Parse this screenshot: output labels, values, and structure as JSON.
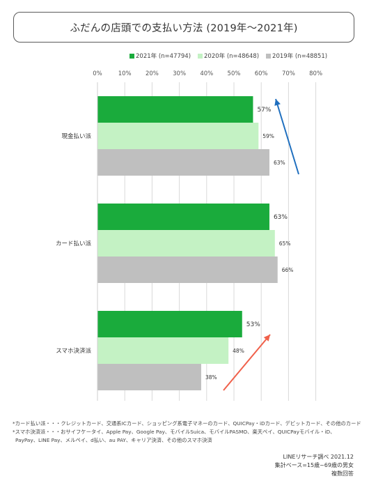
{
  "title": "ふだんの店頭での支払い方法 (2019年～2021年)",
  "legend": [
    {
      "label": "2021年 (n=47794)",
      "color": "#1aab3c"
    },
    {
      "label": "2020年 (n=48648)",
      "color": "#c4f2c4"
    },
    {
      "label": "2019年 (n=48851)",
      "color": "#bfbfbf"
    }
  ],
  "chart_data": {
    "type": "bar",
    "orientation": "horizontal",
    "categories": [
      "現金払い派",
      "カード払い派",
      "スマホ決済派"
    ],
    "series": [
      {
        "name": "2021年 (n=47794)",
        "values": [
          57,
          63,
          53
        ],
        "labels": [
          "57%",
          "63%",
          "53%"
        ],
        "color": "#1aab3c"
      },
      {
        "name": "2020年 (n=48648)",
        "values": [
          59,
          65,
          48
        ],
        "labels": [
          "59%",
          "65%",
          "48%"
        ],
        "color": "#c4f2c4"
      },
      {
        "name": "2019年 (n=48851)",
        "values": [
          63,
          66,
          38
        ],
        "labels": [
          "63%",
          "66%",
          "38%"
        ],
        "color": "#bfbfbf"
      }
    ],
    "xlim": [
      0,
      80
    ],
    "ticks": [
      "0%",
      "10%",
      "20%",
      "30%",
      "40%",
      "50%",
      "60%",
      "70%",
      "80%"
    ],
    "tick_values": [
      0,
      10,
      20,
      30,
      40,
      50,
      60,
      70,
      80
    ],
    "grid": true,
    "legend_position": "top-right",
    "annotations": [
      {
        "type": "arrow",
        "direction": "up",
        "color": "#1f6fbf",
        "category": "現金払い派"
      },
      {
        "type": "arrow",
        "direction": "up",
        "color": "#f0604a",
        "category": "スマホ決済派"
      }
    ]
  },
  "footnotes": [
    "*カード払い派・・・クレジットカード、交通系ICカード、ショッピング系電子マネーのカード、QUICPay・iDカード、デビットカード、その他のカード",
    "*スマホ決済派・・・おサイフケータイ、Apple Pay、Google Pay、モバイルSuica、モバイルPASMO、楽天ペイ、QUICPayモバイル・iD、",
    "PayPay、LINE Pay、メルペイ、d払い、au PAY、キャリア決済、その他のスマホ決済"
  ],
  "source": [
    "LINEリサーチ調べ 2021.12",
    "集計ベース=15歳~69歳の男女",
    "複数回答"
  ]
}
